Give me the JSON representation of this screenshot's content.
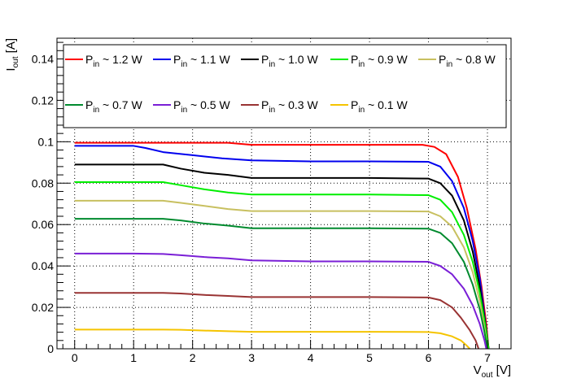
{
  "chart_data": {
    "type": "line",
    "title": "",
    "xlabel": {
      "main": "V",
      "sub": "out",
      "unit": " [V]"
    },
    "ylabel": {
      "main": "I",
      "sub": "out",
      "unit": " [A]"
    },
    "xlim": [
      -0.3,
      7.4
    ],
    "ylim": [
      0,
      0.15
    ],
    "x_ticks": [
      0,
      1,
      2,
      3,
      4,
      5,
      6,
      7
    ],
    "y_ticks": [
      0,
      0.02,
      0.04,
      0.06,
      0.08,
      0.1,
      0.12,
      0.14
    ],
    "x_tick_labels": [
      "0",
      "1",
      "2",
      "3",
      "4",
      "5",
      "6",
      "7"
    ],
    "y_tick_labels": [
      "0",
      "0.02",
      "0.04",
      "0.06",
      "0.08",
      "0.1",
      "0.12",
      "0.14"
    ],
    "grid": true,
    "legend_position": "top",
    "series": [
      {
        "name_main": "P",
        "name_sub": "in",
        "name_rest": " ~ 1.2 W",
        "color": "#ff0000",
        "points": [
          [
            0,
            0.0995
          ],
          [
            1,
            0.0995
          ],
          [
            2,
            0.0995
          ],
          [
            2.6,
            0.0995
          ],
          [
            3,
            0.0985
          ],
          [
            4,
            0.0985
          ],
          [
            5,
            0.0985
          ],
          [
            5.9,
            0.0985
          ],
          [
            6.1,
            0.0975
          ],
          [
            6.3,
            0.094
          ],
          [
            6.5,
            0.083
          ],
          [
            6.65,
            0.068
          ],
          [
            6.8,
            0.048
          ],
          [
            6.9,
            0.03
          ],
          [
            6.98,
            0.012
          ],
          [
            7.02,
            0.0
          ]
        ]
      },
      {
        "name_main": "P",
        "name_sub": "in",
        "name_rest": " ~ 1.1 W",
        "color": "#0000ee",
        "points": [
          [
            0,
            0.098
          ],
          [
            1,
            0.098
          ],
          [
            1.2,
            0.097
          ],
          [
            1.5,
            0.095
          ],
          [
            2,
            0.0935
          ],
          [
            2.5,
            0.092
          ],
          [
            3,
            0.091
          ],
          [
            4,
            0.0905
          ],
          [
            5,
            0.0905
          ],
          [
            6,
            0.0903
          ],
          [
            6.2,
            0.088
          ],
          [
            6.4,
            0.081
          ],
          [
            6.6,
            0.068
          ],
          [
            6.75,
            0.052
          ],
          [
            6.87,
            0.034
          ],
          [
            6.95,
            0.016
          ],
          [
            7.02,
            0.0
          ]
        ]
      },
      {
        "name_main": "P",
        "name_sub": "in",
        "name_rest": " ~ 1.0 W",
        "color": "#000000",
        "points": [
          [
            0,
            0.089
          ],
          [
            1,
            0.089
          ],
          [
            1.5,
            0.089
          ],
          [
            1.8,
            0.087
          ],
          [
            2.2,
            0.085
          ],
          [
            2.6,
            0.084
          ],
          [
            3,
            0.0825
          ],
          [
            4,
            0.0825
          ],
          [
            5,
            0.0825
          ],
          [
            6,
            0.0822
          ],
          [
            6.2,
            0.08
          ],
          [
            6.4,
            0.074
          ],
          [
            6.6,
            0.062
          ],
          [
            6.75,
            0.047
          ],
          [
            6.87,
            0.03
          ],
          [
            6.96,
            0.013
          ],
          [
            7.02,
            0.0
          ]
        ]
      },
      {
        "name_main": "P",
        "name_sub": "in",
        "name_rest": " ~ 0.9 W",
        "color": "#00ee00",
        "points": [
          [
            0,
            0.0805
          ],
          [
            1,
            0.0805
          ],
          [
            1.5,
            0.0805
          ],
          [
            1.8,
            0.079
          ],
          [
            2.2,
            0.077
          ],
          [
            2.6,
            0.0755
          ],
          [
            3,
            0.0745
          ],
          [
            4,
            0.0745
          ],
          [
            5,
            0.0745
          ],
          [
            6,
            0.0742
          ],
          [
            6.2,
            0.072
          ],
          [
            6.4,
            0.066
          ],
          [
            6.6,
            0.055
          ],
          [
            6.75,
            0.042
          ],
          [
            6.87,
            0.027
          ],
          [
            6.96,
            0.012
          ],
          [
            7.02,
            0.0
          ]
        ]
      },
      {
        "name_main": "P",
        "name_sub": "in",
        "name_rest": " ~ 0.8 W",
        "color": "#c8c060",
        "points": [
          [
            0,
            0.0715
          ],
          [
            1,
            0.0715
          ],
          [
            1.5,
            0.0715
          ],
          [
            1.8,
            0.0705
          ],
          [
            2.2,
            0.069
          ],
          [
            2.6,
            0.0675
          ],
          [
            3,
            0.0665
          ],
          [
            4,
            0.0665
          ],
          [
            5,
            0.0665
          ],
          [
            6,
            0.0663
          ],
          [
            6.2,
            0.064
          ],
          [
            6.4,
            0.059
          ],
          [
            6.6,
            0.049
          ],
          [
            6.75,
            0.037
          ],
          [
            6.87,
            0.023
          ],
          [
            6.95,
            0.01
          ],
          [
            7.0,
            0.0
          ]
        ]
      },
      {
        "name_main": "P",
        "name_sub": "in",
        "name_rest": " ~ 0.7 W",
        "color": "#008a2e",
        "points": [
          [
            0,
            0.0628
          ],
          [
            1,
            0.0628
          ],
          [
            1.5,
            0.0628
          ],
          [
            1.8,
            0.062
          ],
          [
            2.2,
            0.0605
          ],
          [
            2.6,
            0.0595
          ],
          [
            3,
            0.0582
          ],
          [
            4,
            0.0582
          ],
          [
            5,
            0.0582
          ],
          [
            6,
            0.058
          ],
          [
            6.2,
            0.056
          ],
          [
            6.4,
            0.051
          ],
          [
            6.6,
            0.042
          ],
          [
            6.75,
            0.031
          ],
          [
            6.87,
            0.019
          ],
          [
            6.95,
            0.008
          ],
          [
            7.0,
            0.0
          ]
        ]
      },
      {
        "name_main": "P",
        "name_sub": "in",
        "name_rest": " ~ 0.5 W",
        "color": "#7a1fd6",
        "points": [
          [
            0,
            0.046
          ],
          [
            1,
            0.046
          ],
          [
            1.5,
            0.0458
          ],
          [
            1.8,
            0.0452
          ],
          [
            2.2,
            0.0443
          ],
          [
            2.6,
            0.0437
          ],
          [
            3,
            0.0427
          ],
          [
            4,
            0.0422
          ],
          [
            5,
            0.0422
          ],
          [
            6,
            0.042
          ],
          [
            6.2,
            0.04
          ],
          [
            6.4,
            0.036
          ],
          [
            6.6,
            0.029
          ],
          [
            6.75,
            0.021
          ],
          [
            6.87,
            0.012
          ],
          [
            6.95,
            0.004
          ],
          [
            6.98,
            0.0
          ]
        ]
      },
      {
        "name_main": "P",
        "name_sub": "in",
        "name_rest": " ~ 0.3 W",
        "color": "#993333",
        "points": [
          [
            0,
            0.027
          ],
          [
            1,
            0.027
          ],
          [
            1.5,
            0.027
          ],
          [
            1.8,
            0.0267
          ],
          [
            2.2,
            0.026
          ],
          [
            2.6,
            0.0255
          ],
          [
            3,
            0.025
          ],
          [
            4,
            0.025
          ],
          [
            5,
            0.025
          ],
          [
            6,
            0.0248
          ],
          [
            6.2,
            0.0235
          ],
          [
            6.4,
            0.02
          ],
          [
            6.55,
            0.015
          ],
          [
            6.7,
            0.009
          ],
          [
            6.8,
            0.004
          ],
          [
            6.85,
            0.0
          ]
        ]
      },
      {
        "name_main": "P",
        "name_sub": "in",
        "name_rest": " ~ 0.1 W",
        "color": "#f5c400",
        "points": [
          [
            0,
            0.0093
          ],
          [
            1,
            0.0093
          ],
          [
            1.5,
            0.0093
          ],
          [
            1.8,
            0.0092
          ],
          [
            2.2,
            0.0088
          ],
          [
            2.6,
            0.0085
          ],
          [
            3,
            0.0082
          ],
          [
            4,
            0.0082
          ],
          [
            5,
            0.0082
          ],
          [
            6,
            0.0081
          ],
          [
            6.2,
            0.0075
          ],
          [
            6.4,
            0.006
          ],
          [
            6.55,
            0.004
          ],
          [
            6.65,
            0.0015
          ],
          [
            6.7,
            0.0
          ]
        ]
      }
    ]
  }
}
